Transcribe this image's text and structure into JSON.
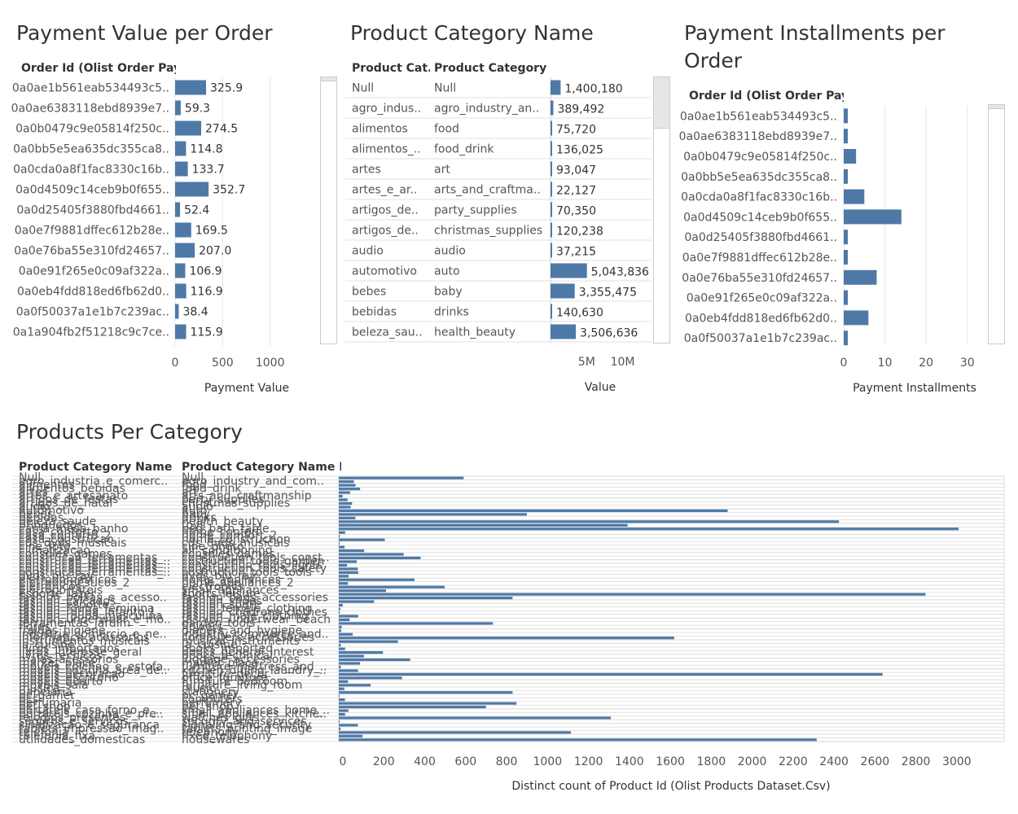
{
  "colors": {
    "bar": "#4e79a7",
    "text": "#555555",
    "grid": "#e6e6e6"
  },
  "titles": {
    "payment_value": "Payment Value per Order",
    "category_name": "Product Category Name",
    "installments": "Payment Installments per Order",
    "products": "Products Per Category"
  },
  "headers": {
    "order_id_1": "Order Id (Olist Order Pay..",
    "order_id_3": "Order Id (Olist Order Pay..",
    "cat_pt": "Product Cat..",
    "cat_en": "Product Category ..",
    "prod_cat_name": "Product Category Name",
    "prod_cat_name_en": "Product Category Name E.."
  },
  "chart_data": [
    {
      "type": "bar",
      "orientation": "horizontal",
      "title": "Payment Value per Order",
      "row_header": "Order Id (Olist Order Pay..",
      "categories": [
        "0a0ae1b561eab534493c5..",
        "0a0ae6383118ebd8939e7..",
        "0a0b0479c9e05814f250c..",
        "0a0bb5e5ea635dc355ca8..",
        "0a0cda0a8f1fac8330c16b..",
        "0a0d4509c14ceb9b0f655..",
        "0a0d25405f3880fbd4661..",
        "0a0e7f9881dffec612b28e..",
        "0a0e76ba55e310fd24657..",
        "0a0e91f265e0c09af322a..",
        "0a0eb4fdd818ed6fb62d0..",
        "0a0f50037a1e1b7c239ac..",
        "0a1a904fb2f51218c9c7ce.."
      ],
      "values": [
        325.9,
        59.3,
        274.5,
        114.8,
        133.7,
        352.7,
        52.4,
        169.5,
        207.0,
        106.9,
        116.9,
        38.4,
        115.9
      ],
      "labels": [
        "325.9",
        "59.3",
        "274.5",
        "114.8",
        "133.7",
        "352.7",
        "52.4",
        "169.5",
        "207.0",
        "106.9",
        "116.9",
        "38.4",
        "115.9"
      ],
      "xlim": [
        0,
        1500
      ],
      "ticks": [
        0,
        500,
        1000
      ],
      "tick_labels": [
        "0",
        "500",
        "1000"
      ],
      "xlabel": "Payment Value",
      "grid": true
    },
    {
      "type": "table",
      "title": "Product Category Name",
      "columns": [
        "Product Cat..",
        "Product Category .."
      ],
      "rows": [
        [
          "Null",
          "Null"
        ],
        [
          "agro_indus..",
          "agro_industry_an.."
        ],
        [
          "alimentos",
          "food"
        ],
        [
          "alimentos_..",
          "food_drink"
        ],
        [
          "artes",
          "art"
        ],
        [
          "artes_e_ar..",
          "arts_and_craftma.."
        ],
        [
          "artigos_de..",
          "party_supplies"
        ],
        [
          "artigos_de..",
          "christmas_supplies"
        ],
        [
          "audio",
          "audio"
        ],
        [
          "automotivo",
          "auto"
        ],
        [
          "bebes",
          "baby"
        ],
        [
          "bebidas",
          "drinks"
        ],
        [
          "beleza_sau..",
          "health_beauty"
        ]
      ],
      "values": [
        1400180,
        389492,
        75720,
        136025,
        93047,
        22127,
        70350,
        120238,
        37215,
        5043836,
        3355475,
        140630,
        3506636
      ],
      "labels": [
        "1,400,180",
        "389,492",
        "75,720",
        "136,025",
        "93,047",
        "22,127",
        "70,350",
        "120,238",
        "37,215",
        "5,043,836",
        "3,355,475",
        "140,630",
        "3,506,636"
      ],
      "xlim": [
        0,
        14000000
      ],
      "ticks": [
        5000000,
        10000000
      ],
      "tick_labels": [
        "5M",
        "10M"
      ],
      "xlabel": "Value"
    },
    {
      "type": "bar",
      "orientation": "horizontal",
      "title": "Payment Installments per Order",
      "row_header": "Order Id (Olist Order Pay..",
      "categories": [
        "0a0ae1b561eab534493c5..",
        "0a0ae6383118ebd8939e7..",
        "0a0b0479c9e05814f250c..",
        "0a0bb5e5ea635dc355ca8..",
        "0a0cda0a8f1fac8330c16b..",
        "0a0d4509c14ceb9b0f655..",
        "0a0d25405f3880fbd4661..",
        "0a0e7f9881dffec612b28e..",
        "0a0e76ba55e310fd24657..",
        "0a0e91f265e0c09af322a..",
        "0a0eb4fdd818ed6fb62d0..",
        "0a0f50037a1e1b7c239ac.."
      ],
      "values": [
        1,
        1,
        3,
        1,
        5,
        14,
        1,
        1,
        8,
        1,
        6,
        1
      ],
      "xlim": [
        0,
        34
      ],
      "ticks": [
        0,
        10,
        20,
        30
      ],
      "tick_labels": [
        "0",
        "10",
        "20",
        "30"
      ],
      "xlabel": "Payment Installments",
      "grid": true
    },
    {
      "type": "bar",
      "orientation": "horizontal",
      "title": "Products Per Category",
      "columns": [
        "Product Category Name",
        "Product Category Name E.."
      ],
      "categories_pt": [
        "Null",
        "agro_industria_e_comerc..",
        "alimentos",
        "alimentos_bebidas",
        "artes",
        "artes_e_artesanato",
        "artigos_de_festas",
        "artigos_de_natal",
        "audio",
        "automotivo",
        "bebes",
        "bebidas",
        "beleza_saude",
        "brinquedos",
        "cama_mesa_banho",
        "casa_conforto",
        "casa_conforto_2",
        "casa_construcao",
        "cds_dvds_musicais",
        "cine_foto",
        "climatizacao",
        "consoles_games",
        "construcao_ferramentas_..",
        "construcao_ferramentas_..",
        "construcao_ferramentas_..",
        "construcao_ferramentas_..",
        "construcao_ferramentas_..",
        "dvds_blu_ray",
        "eletrodomesticos",
        "eletrodomesticos_2",
        "eletronicos",
        "eletroportateis",
        "esporte_lazer",
        "fashion_bolsas_e_acesso..",
        "fashion_calcados",
        "fashion_esporte",
        "fashion_roupa_feminina",
        "fashion_roupa_infanto_j..",
        "fashion_roupa_masculina",
        "fashion_underwear_e_mo..",
        "ferramentas_jardim",
        "flores",
        "fraldas_higiene",
        "industria_comercio_e_ne..",
        "informatica_acessorios",
        "instrumentos_musicais",
        "la_cuisine",
        "livros_importados",
        "livros_interesse_geral",
        "livros_tecnicos",
        "malas_acessorios",
        "market_place",
        "moveis_colchao_e_estofa..",
        "moveis_cozinha_area_de..",
        "moveis_decoracao",
        "moveis_escritorio",
        "moveis_quarto",
        "moveis_sala",
        "musica",
        "papelaria",
        "pc_gamer",
        "pcs",
        "perfumaria",
        "pet_shop",
        "portateis_casa_forno_e_..",
        "portateis_cozinha_e_pre..",
        "relogios_presentes",
        "seguros_e_servicos",
        "sinalizacao_e_seguranca",
        "tablets_impressao_imag..",
        "telefonia",
        "telefonia_fixa",
        "utilidades_domesticas"
      ],
      "categories_en": [
        "Null",
        "agro_industry_and_com..",
        "food",
        "food_drink",
        "art",
        "arts_and_craftmanship",
        "party_supplies",
        "christmas_supplies",
        "audio",
        "auto",
        "baby",
        "drinks",
        "health_beauty",
        "toys",
        "bed_bath_table",
        "home_confort",
        "home_comfort_2",
        "home_construction",
        "cds_dvds_musicals",
        "cine_photo",
        "air_conditioning",
        "consoles_games",
        "construction_tools_const..",
        "costruction_tools_garden",
        "construction_tools_lights",
        "construction_tools_safety",
        "costruction_tools_tools",
        "dvds_blu_ray",
        "home_appliances",
        "home_appliances_2",
        "electronics",
        "small_appliances",
        "sports_leisure",
        "fashion_bags_accessories",
        "fashion_shoes",
        "fashion_sport",
        "fashio_female_clothing",
        "fashion_childrens_clothes",
        "fashion_male_clothing",
        "fashion_underwear_beach",
        "garden_tools",
        "flowers",
        "diapers_and_hygiene",
        "industry_commerce_and..",
        "computers_accessories",
        "musical_instruments",
        "la_cuisine",
        "books_imported",
        "books_general_interest",
        "books_technical",
        "luggage_accessories",
        "market_place",
        "furniture_mattress_and_..",
        "kitchen_dining_laundry_..",
        "furniture_decor",
        "office_furniture",
        "furniture_bedroom",
        "furniture_living_room",
        "music",
        "stationery",
        "pc_gamer",
        "computers",
        "perfumery",
        "pet_shop",
        "small_appliances_home_..",
        "small_appliances_kitche..",
        "watches_gifts",
        "security_and_services",
        "signaling_and_security",
        "tablets_printing_image",
        "telephony",
        "fixed_telephony",
        "housewares"
      ],
      "values": [
        610,
        74,
        82,
        104,
        55,
        19,
        43,
        65,
        58,
        1900,
        919,
        81,
        2444,
        1411,
        3029,
        31,
        5,
        225,
        1,
        28,
        124,
        317,
        400,
        88,
        40,
        93,
        95,
        48,
        370,
        45,
        517,
        231,
        2867,
        849,
        173,
        19,
        8,
        5,
        95,
        53,
        753,
        14,
        12,
        68,
        1639,
        289,
        10,
        31,
        216,
        123,
        349,
        104,
        10,
        94,
        2657,
        309,
        45,
        156,
        27,
        849,
        3,
        30,
        868,
        719,
        47,
        31,
        1329,
        2,
        93,
        9,
        1134,
        116,
        2335
      ],
      "xlim": [
        0,
        3100
      ],
      "ticks": [
        0,
        200,
        400,
        600,
        800,
        1000,
        1200,
        1400,
        1600,
        1800,
        2000,
        2200,
        2400,
        2600,
        2800,
        3000
      ],
      "tick_labels": [
        "0",
        "200",
        "400",
        "600",
        "800",
        "1000",
        "1200",
        "1400",
        "1600",
        "1800",
        "2000",
        "2200",
        "2400",
        "2600",
        "2800",
        "3000"
      ],
      "xlabel": "Distinct count of Product Id (Olist Products Dataset.Csv)",
      "grid": true
    }
  ]
}
